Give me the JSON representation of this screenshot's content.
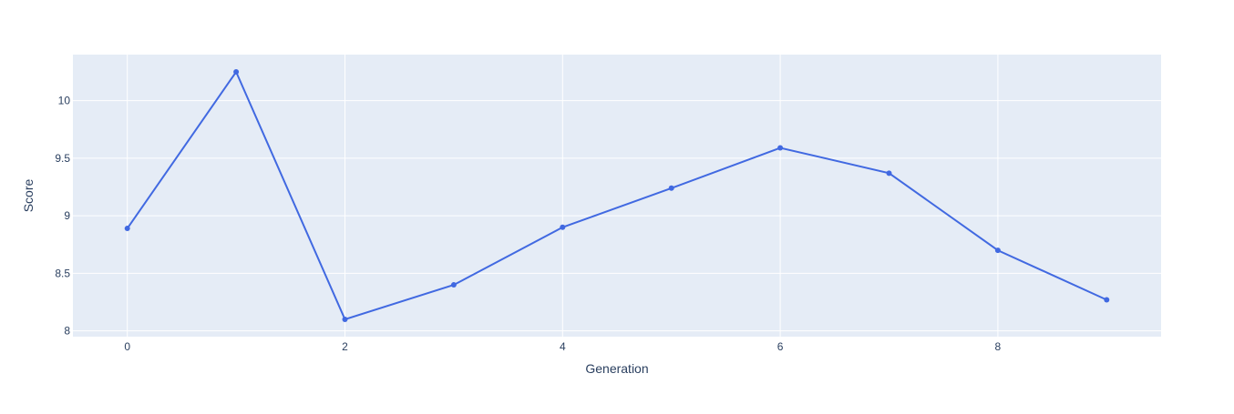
{
  "chart_data": {
    "type": "line",
    "title": "",
    "xlabel": "Generation",
    "ylabel": "Score",
    "x": [
      0,
      1,
      2,
      3,
      4,
      5,
      6,
      7,
      8,
      9
    ],
    "series": [
      {
        "values": [
          8.89,
          10.25,
          8.1,
          8.4,
          8.9,
          9.24,
          9.59,
          9.37,
          8.7,
          8.27
        ]
      }
    ],
    "xlim": [
      -0.5,
      9.5
    ],
    "ylim": [
      7.95,
      10.4
    ],
    "xticks": [
      0,
      2,
      4,
      6,
      8
    ],
    "xtick_labels": [
      "0",
      "2",
      "4",
      "6",
      "8"
    ],
    "yticks": [
      8,
      8.5,
      9,
      9.5,
      10
    ],
    "ytick_labels": [
      "8",
      "8.5",
      "9",
      "9.5",
      "10"
    ],
    "grid": true,
    "legend": "none",
    "colors": {
      "line": "#4169e1",
      "plot_background": "#e5ecf6",
      "grid": "#ffffff",
      "text": "#2a3f5f"
    }
  }
}
